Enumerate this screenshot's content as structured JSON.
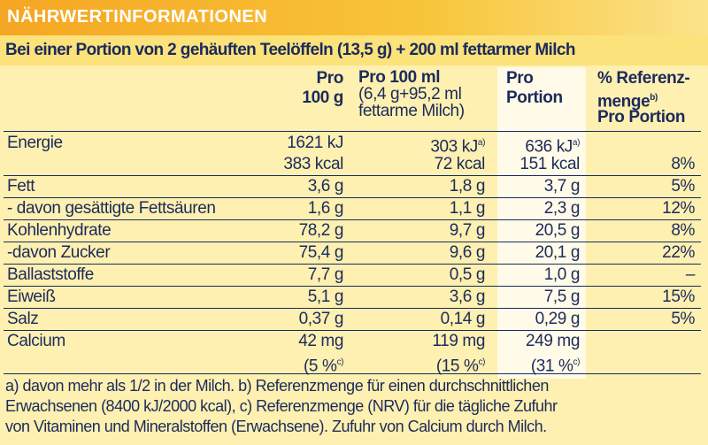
{
  "header": {
    "title": "NÄHRWERTINFORMATIONEN",
    "subtitle": "Bei einer Portion von 2 gehäuften Teelöffeln (13,5 g) + 200 ml fettarmer Milch"
  },
  "table": {
    "columns": [
      [
        "Pro",
        "100 g"
      ],
      [
        "Pro 100 ml",
        "(6,4 g+95,2 ml",
        "fettarme Milch)"
      ],
      [
        "Pro",
        "Portion"
      ],
      [
        "% Referenz-",
        {
          "text": "menge",
          "sup": "b)"
        },
        "Pro Portion"
      ]
    ],
    "rows": [
      {
        "label": "Energie",
        "values": [
          [
            "1621 kJ",
            "383 kcal"
          ],
          [
            {
              "text": "303 kJ",
              "sup": "a)"
            },
            "72 kcal"
          ],
          [
            {
              "text": "636 kJ",
              "sup": "a)"
            },
            "151 kcal"
          ],
          [
            null,
            "8%"
          ]
        ]
      },
      {
        "label": "Fett",
        "values": [
          [
            "3,6 g"
          ],
          [
            "1,8 g"
          ],
          [
            "3,7 g"
          ],
          [
            "5%"
          ]
        ]
      },
      {
        "label": "- davon gesättigte Fettsäuren",
        "values": [
          [
            "1,6 g"
          ],
          [
            "1,1 g"
          ],
          [
            "2,3 g"
          ],
          [
            "12%"
          ]
        ]
      },
      {
        "label": "Kohlenhydrate",
        "values": [
          [
            "78,2 g"
          ],
          [
            "9,7 g"
          ],
          [
            "20,5 g"
          ],
          [
            "8%"
          ]
        ]
      },
      {
        "label": "-davon Zucker",
        "values": [
          [
            "75,4 g"
          ],
          [
            "9,6 g"
          ],
          [
            "20,1 g"
          ],
          [
            "22%"
          ]
        ]
      },
      {
        "label": "Ballaststoffe",
        "values": [
          [
            "7,7 g"
          ],
          [
            "0,5 g"
          ],
          [
            "1,0 g"
          ],
          [
            "–"
          ]
        ]
      },
      {
        "label": "Eiweiß",
        "values": [
          [
            "5,1 g"
          ],
          [
            "3,6 g"
          ],
          [
            "7,5 g"
          ],
          [
            "15%"
          ]
        ]
      },
      {
        "label": "Salz",
        "values": [
          [
            "0,37 g"
          ],
          [
            "0,14 g"
          ],
          [
            "0,29 g"
          ],
          [
            "5%"
          ]
        ]
      },
      {
        "label": "Calcium",
        "values": [
          [
            "42 mg",
            {
              "text": "(5 %",
              "sup": "c)"
            }
          ],
          [
            "119 mg",
            {
              "text": "(15 %",
              "sup": "c)"
            }
          ],
          [
            "249 mg",
            {
              "text": "(31 %",
              "sup": "c)"
            }
          ],
          [
            null
          ]
        ]
      }
    ]
  },
  "footnotes": [
    "a) davon mehr als 1/2 in der Milch. b) Referenzmenge für einen durchschnittlichen",
    "Erwachsenen (8400 kJ/2000 kcal), c) Referenzmenge (NRV) für die tägliche Zufuhr",
    "von Vitaminen und Mineralstoffen (Erwachsene). Zufuhr von Calcium durch Milch."
  ]
}
